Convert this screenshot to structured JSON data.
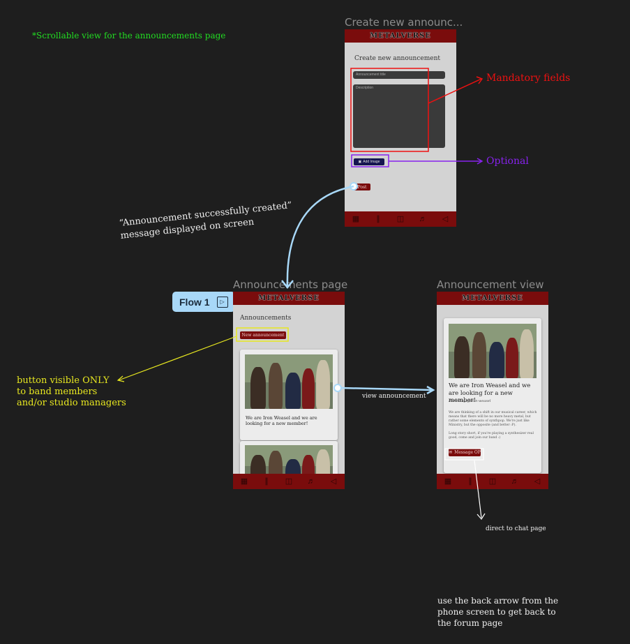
{
  "notes": {
    "scrollable": "*Scrollable view for the announcements page",
    "success_line1": "“Announcement successfully created”",
    "success_line2": "message displayed on screen",
    "mandatory": "Mandatory fields",
    "optional": "Optional",
    "button_visible_line1": "button visible ONLY",
    "button_visible_line2": "to band members",
    "button_visible_line3": "and/or studio managers",
    "view_announcement": "view announcement",
    "direct_chat": "direct to chat page",
    "back_arrow_line1": "use the back arrow from the",
    "back_arrow_line2": "phone screen to get back to",
    "back_arrow_line3": "the forum page"
  },
  "flow_badge": {
    "label": "Flow 1",
    "icon": "play-icon"
  },
  "create_screen": {
    "frame_title": "Create new announc...",
    "logo": "METALVERSE",
    "heading": "Create new announcement",
    "title_placeholder": "Announcement title",
    "description_placeholder": "Description",
    "add_image_label": "Add Image",
    "post_label": "Post"
  },
  "announcements_screen": {
    "frame_title": "Announcements page",
    "logo": "METALVERSE",
    "heading": "Announcements",
    "new_button": "New announcement",
    "card1_text": "We are Iron Weasel and we are looking for a new member!"
  },
  "view_screen": {
    "frame_title": "Announcement view",
    "logo": "METALVERSE",
    "title": "We are Iron Weasel and we are looking for a new member!",
    "posted_by": "Posted by @iron-weasel",
    "paragraph1": "We are thinking of a shift in our musical career, which means that there will be no more heavy metal, but rather some elements of synthpop. We're just like Ministry, but the opposite (and better :P).",
    "paragraph2": "Long story short, if you're playing a synthesizer real good, come and join our band :)",
    "message_button": "Message OP"
  },
  "bottom_nav": [
    "calendar-icon",
    "audio-wave-icon",
    "chat-icon",
    "guitar-icon",
    "megaphone-icon"
  ],
  "colors": {
    "background": "#1e1e1e",
    "brand_red": "#7a0c0c",
    "note_green": "#22dd22",
    "note_red": "#ee1111",
    "note_purple": "#8822ee",
    "note_yellow": "#e8e820",
    "connector_blue": "#a8d8f8"
  }
}
